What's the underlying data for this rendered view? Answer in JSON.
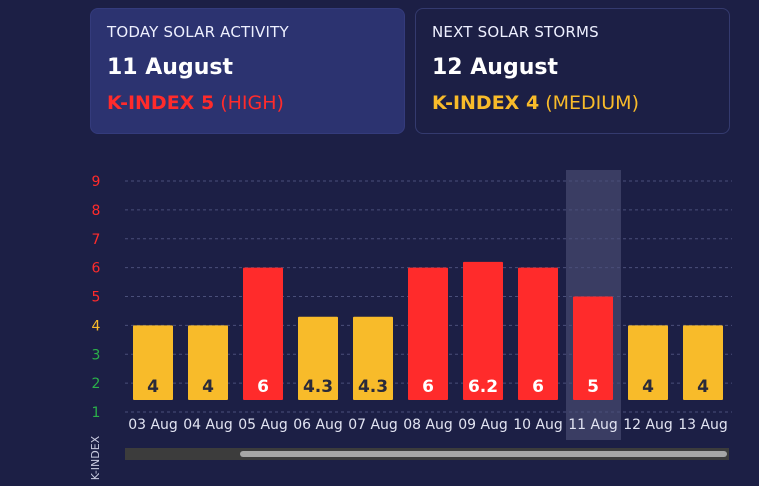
{
  "today": {
    "label": "TODAY SOLAR ACTIVITY",
    "date": "11 August",
    "kindex_value": "K-INDEX 5",
    "kindex_level": "(HIGH)"
  },
  "next": {
    "label": "NEXT SOLAR STORMS",
    "date": "12 August",
    "kindex_value": "K-INDEX 4",
    "kindex_level": "(MEDIUM)"
  },
  "colors": {
    "background": "#1c1f45",
    "high": "#ff2b2b",
    "medium": "#f8bb2a",
    "low": "#2bb04a",
    "highlight": "#3a3d63"
  },
  "chart_data": {
    "type": "bar",
    "categories": [
      "03 Aug",
      "04 Aug",
      "05 Aug",
      "06 Aug",
      "07 Aug",
      "08 Aug",
      "09 Aug",
      "10 Aug",
      "11 Aug",
      "12 Aug",
      "13 Aug"
    ],
    "values": [
      4,
      4,
      6,
      4.3,
      4.3,
      6,
      6.2,
      6,
      5,
      4,
      4
    ],
    "value_labels": [
      "4",
      "4",
      "6",
      "4.3",
      "4.3",
      "6",
      "6.2",
      "6",
      "5",
      "4",
      "4"
    ],
    "bar_colors": [
      "#f8bb2a",
      "#f8bb2a",
      "#ff2b2b",
      "#f8bb2a",
      "#f8bb2a",
      "#ff2b2b",
      "#ff2b2b",
      "#ff2b2b",
      "#ff2b2b",
      "#f8bb2a",
      "#f8bb2a"
    ],
    "highlighted_category": "11 Aug",
    "ylabel": "K-INDEX",
    "yticks": [
      "1",
      "2",
      "3",
      "4",
      "5",
      "6",
      "7",
      "8",
      "9"
    ],
    "ytick_colors": [
      "#2bb04a",
      "#2bb04a",
      "#2bb04a",
      "#f8bb2a",
      "#ff2b2b",
      "#ff2b2b",
      "#ff2b2b",
      "#ff2b2b",
      "#ff2b2b"
    ],
    "ylim": [
      1,
      9
    ],
    "grid": true
  }
}
